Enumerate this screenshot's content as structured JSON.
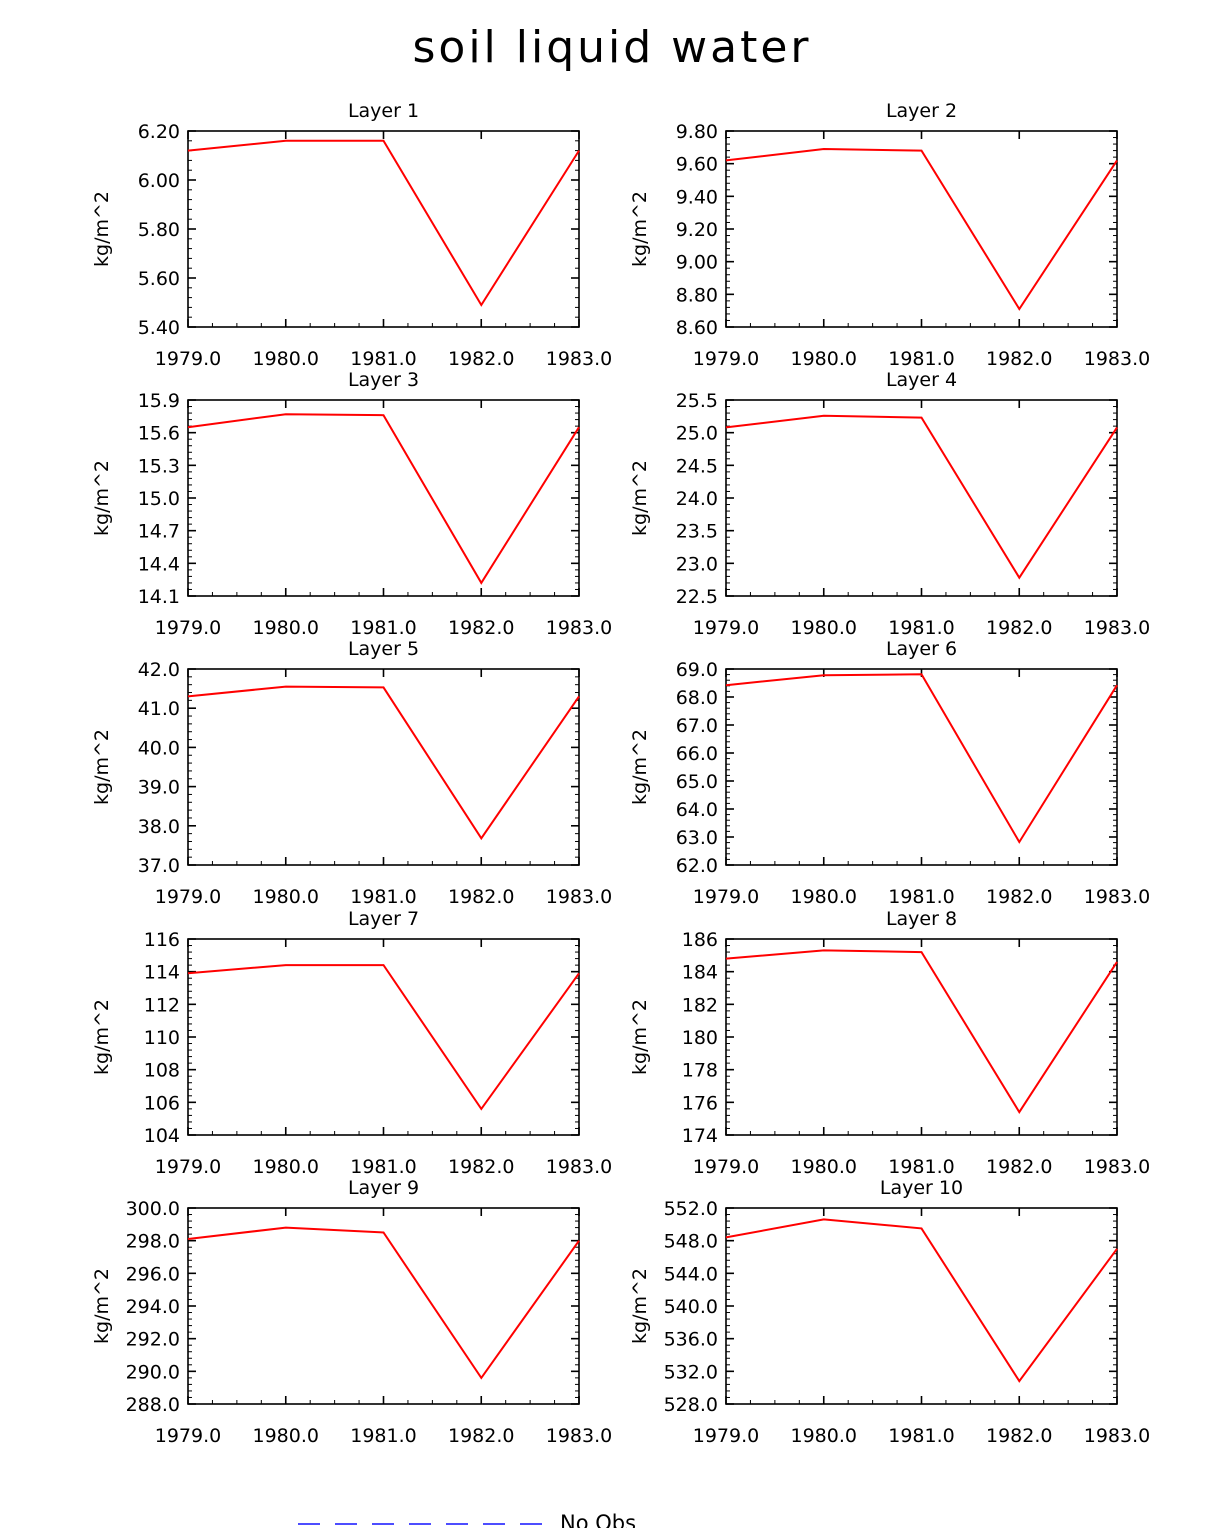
{
  "title": "soil liquid water",
  "legend": {
    "label": "No Obs",
    "color": "#4d4dff"
  },
  "line_color": "#ff0000",
  "chart_data": [
    {
      "type": "line",
      "title": "Layer 1",
      "ylabel": "kg/m^2",
      "x": [
        1979.0,
        1980.0,
        1981.0,
        1982.0,
        1983.0
      ],
      "xticks": [
        "1979.0",
        "1980.0",
        "1981.0",
        "1982.0",
        "1983.0"
      ],
      "yticks": [
        "5.40",
        "5.60",
        "5.80",
        "6.00",
        "6.20"
      ],
      "ylim": [
        5.4,
        6.2
      ],
      "series": [
        {
          "values": [
            6.12,
            6.16,
            6.16,
            5.49,
            6.12
          ]
        }
      ]
    },
    {
      "type": "line",
      "title": "Layer 2",
      "ylabel": "kg/m^2",
      "x": [
        1979.0,
        1980.0,
        1981.0,
        1982.0,
        1983.0
      ],
      "xticks": [
        "1979.0",
        "1980.0",
        "1981.0",
        "1982.0",
        "1983.0"
      ],
      "yticks": [
        "8.60",
        "8.80",
        "9.00",
        "9.20",
        "9.40",
        "9.60",
        "9.80"
      ],
      "ylim": [
        8.6,
        9.8
      ],
      "series": [
        {
          "values": [
            9.62,
            9.69,
            9.68,
            8.71,
            9.62
          ]
        }
      ]
    },
    {
      "type": "line",
      "title": "Layer 3",
      "ylabel": "kg/m^2",
      "x": [
        1979.0,
        1980.0,
        1981.0,
        1982.0,
        1983.0
      ],
      "xticks": [
        "1979.0",
        "1980.0",
        "1981.0",
        "1982.0",
        "1983.0"
      ],
      "yticks": [
        "14.1",
        "14.4",
        "14.7",
        "15.0",
        "15.3",
        "15.6",
        "15.9"
      ],
      "ylim": [
        14.1,
        15.9
      ],
      "series": [
        {
          "values": [
            15.65,
            15.77,
            15.76,
            14.22,
            15.65
          ]
        }
      ]
    },
    {
      "type": "line",
      "title": "Layer 4",
      "ylabel": "kg/m^2",
      "x": [
        1979.0,
        1980.0,
        1981.0,
        1982.0,
        1983.0
      ],
      "xticks": [
        "1979.0",
        "1980.0",
        "1981.0",
        "1982.0",
        "1983.0"
      ],
      "yticks": [
        "22.5",
        "23.0",
        "23.5",
        "24.0",
        "24.5",
        "25.0",
        "25.5"
      ],
      "ylim": [
        22.5,
        25.5
      ],
      "series": [
        {
          "values": [
            25.08,
            25.26,
            25.23,
            22.78,
            25.08
          ]
        }
      ]
    },
    {
      "type": "line",
      "title": "Layer 5",
      "ylabel": "kg/m^2",
      "x": [
        1979.0,
        1980.0,
        1981.0,
        1982.0,
        1983.0
      ],
      "xticks": [
        "1979.0",
        "1980.0",
        "1981.0",
        "1982.0",
        "1983.0"
      ],
      "yticks": [
        "37.0",
        "38.0",
        "39.0",
        "40.0",
        "41.0",
        "42.0"
      ],
      "ylim": [
        37.0,
        42.0
      ],
      "series": [
        {
          "values": [
            41.3,
            41.55,
            41.53,
            37.68,
            41.3
          ]
        }
      ]
    },
    {
      "type": "line",
      "title": "Layer 6",
      "ylabel": "kg/m^2",
      "x": [
        1979.0,
        1980.0,
        1981.0,
        1982.0,
        1983.0
      ],
      "xticks": [
        "1979.0",
        "1980.0",
        "1981.0",
        "1982.0",
        "1983.0"
      ],
      "yticks": [
        "62.0",
        "63.0",
        "64.0",
        "65.0",
        "66.0",
        "67.0",
        "68.0",
        "69.0"
      ],
      "ylim": [
        62.0,
        69.0
      ],
      "series": [
        {
          "values": [
            68.42,
            68.78,
            68.81,
            62.82,
            68.42
          ]
        }
      ]
    },
    {
      "type": "line",
      "title": "Layer 7",
      "ylabel": "kg/m^2",
      "x": [
        1979.0,
        1980.0,
        1981.0,
        1982.0,
        1983.0
      ],
      "xticks": [
        "1979.0",
        "1980.0",
        "1981.0",
        "1982.0",
        "1983.0"
      ],
      "yticks": [
        "104",
        "106",
        "108",
        "110",
        "112",
        "114",
        "116"
      ],
      "ylim": [
        104,
        116
      ],
      "series": [
        {
          "values": [
            113.9,
            114.4,
            114.4,
            105.6,
            113.9
          ]
        }
      ]
    },
    {
      "type": "line",
      "title": "Layer 8",
      "ylabel": "kg/m^2",
      "x": [
        1979.0,
        1980.0,
        1981.0,
        1982.0,
        1983.0
      ],
      "xticks": [
        "1979.0",
        "1980.0",
        "1981.0",
        "1982.0",
        "1983.0"
      ],
      "yticks": [
        "174",
        "176",
        "178",
        "180",
        "182",
        "184",
        "186"
      ],
      "ylim": [
        174,
        186
      ],
      "series": [
        {
          "values": [
            184.8,
            185.3,
            185.2,
            175.4,
            184.6
          ]
        }
      ]
    },
    {
      "type": "line",
      "title": "Layer 9",
      "ylabel": "kg/m^2",
      "x": [
        1979.0,
        1980.0,
        1981.0,
        1982.0,
        1983.0
      ],
      "xticks": [
        "1979.0",
        "1980.0",
        "1981.0",
        "1982.0",
        "1983.0"
      ],
      "yticks": [
        "288.0",
        "290.0",
        "292.0",
        "294.0",
        "296.0",
        "298.0",
        "300.0"
      ],
      "ylim": [
        288.0,
        300.0
      ],
      "series": [
        {
          "values": [
            298.1,
            298.8,
            298.5,
            289.6,
            298.0
          ]
        }
      ]
    },
    {
      "type": "line",
      "title": "Layer 10",
      "ylabel": "kg/m^2",
      "x": [
        1979.0,
        1980.0,
        1981.0,
        1982.0,
        1983.0
      ],
      "xticks": [
        "1979.0",
        "1980.0",
        "1981.0",
        "1982.0",
        "1983.0"
      ],
      "yticks": [
        "528.0",
        "532.0",
        "536.0",
        "540.0",
        "544.0",
        "548.0",
        "552.0"
      ],
      "ylim": [
        528.0,
        552.0
      ],
      "series": [
        {
          "values": [
            548.4,
            550.6,
            549.5,
            530.8,
            547.0
          ]
        }
      ]
    }
  ]
}
